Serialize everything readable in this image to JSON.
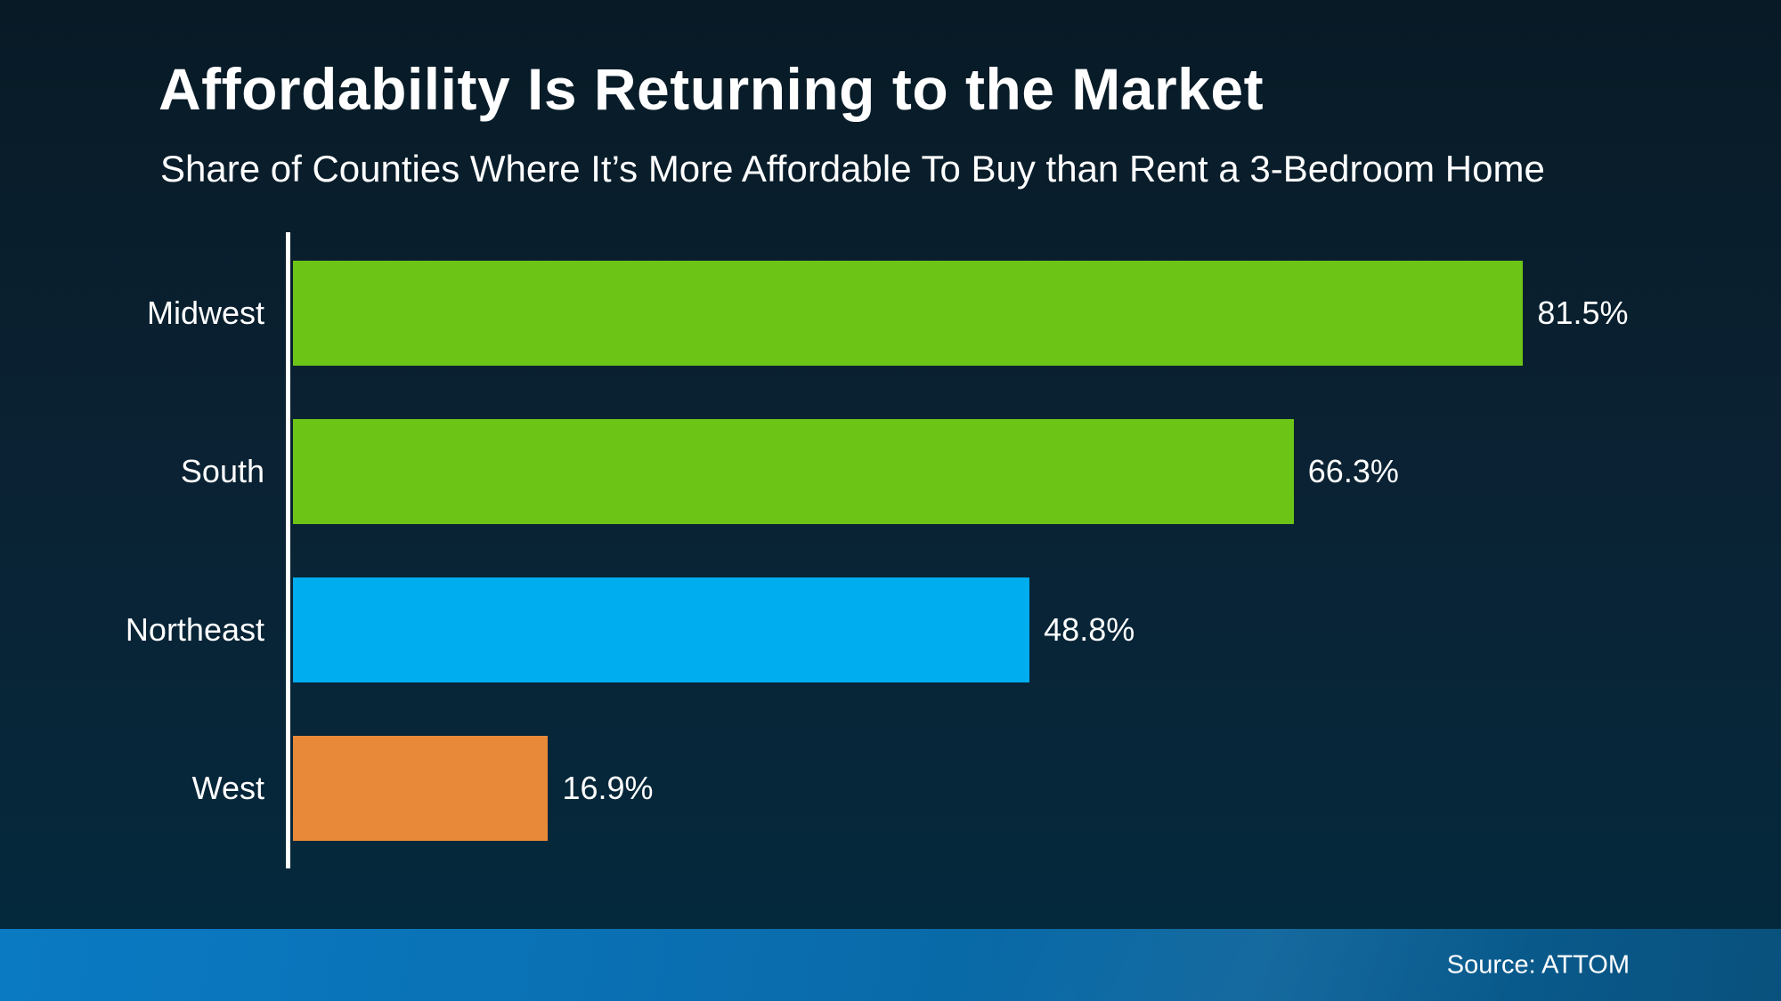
{
  "slide": {
    "title": "Affordability Is Returning to the Market",
    "subtitle": "Share of Counties Where It’s More Affordable To Buy than Rent a 3-Bedroom Home",
    "source": "Source: ATTOM"
  },
  "colors": {
    "background_top": "#081a26",
    "background_bottom": "#042a3e",
    "green": "#6cc417",
    "blue": "#00adee",
    "orange": "#e8893a",
    "axis": "#ffffff",
    "text": "#ffffff",
    "footer_left": "#0a7ac3",
    "footer_right": "#09517d"
  },
  "chart_data": {
    "type": "bar",
    "orientation": "horizontal",
    "title": "Affordability Is Returning to the Market",
    "subtitle": "Share of Counties Where It’s More Affordable To Buy than Rent a 3-Bedroom Home",
    "categories": [
      "Midwest",
      "South",
      "Northeast",
      "West"
    ],
    "values": [
      81.5,
      66.3,
      48.8,
      16.9
    ],
    "value_labels": [
      "81.5%",
      "66.3%",
      "48.8%",
      "16.9%"
    ],
    "bar_colors": [
      "#6cc417",
      "#6cc417",
      "#00adee",
      "#e8893a"
    ],
    "xlim": [
      0,
      100
    ],
    "grid": false,
    "legend": false,
    "axis_line": "left-vertical-white",
    "source": "Source: ATTOM"
  }
}
